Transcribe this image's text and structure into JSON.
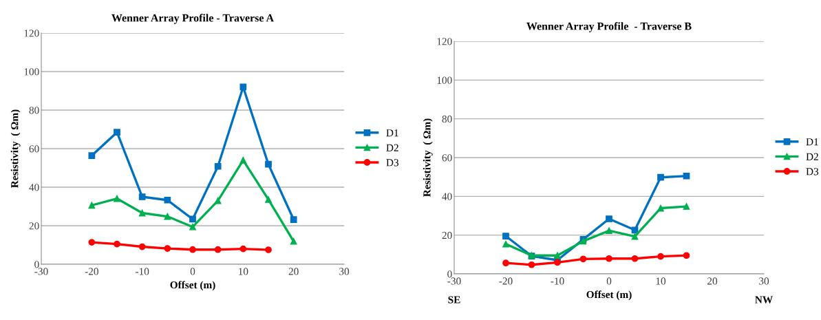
{
  "chart_data": [
    {
      "type": "line",
      "title": "Wenner Array Profile - Traverse A",
      "xlabel": "Offset (m)",
      "ylabel": "Resistivity  ( Ωm)",
      "xlim": [
        -30,
        30
      ],
      "xticks": [
        -30,
        -20,
        -10,
        0,
        10,
        20,
        30
      ],
      "ylim": [
        0,
        120
      ],
      "yticks": [
        0,
        20,
        40,
        60,
        80,
        100,
        120
      ],
      "grid": "y",
      "legend": "right",
      "series": [
        {
          "name": "D1",
          "color": "#0070c0",
          "marker": "square",
          "x": [
            -20,
            -15,
            -10,
            -5,
            0,
            5,
            10,
            15,
            20
          ],
          "values": [
            56.4,
            68.5,
            35,
            33.3,
            23.4,
            50.8,
            92,
            51.9,
            23.2
          ]
        },
        {
          "name": "D2",
          "color": "#00b050",
          "marker": "triangle",
          "x": [
            -20,
            -15,
            -10,
            -5,
            0,
            5,
            10,
            15,
            20
          ],
          "values": [
            30.6,
            34.1,
            26.6,
            24.8,
            19.4,
            33,
            54,
            33.6,
            11.9
          ]
        },
        {
          "name": "D3",
          "color": "#ff0000",
          "marker": "circle",
          "x": [
            -20,
            -15,
            -10,
            -5,
            0,
            5,
            10,
            15
          ],
          "values": [
            11.4,
            10.5,
            9.1,
            8.2,
            7.6,
            7.6,
            8,
            7.5
          ]
        }
      ]
    },
    {
      "type": "line",
      "title": "Wenner Array Profile  - Traverse B",
      "xlabel": "Offset (m)",
      "ylabel": "Resistivity  ( Ωm)",
      "xlim": [
        -30,
        30
      ],
      "xticks": [
        -30,
        -20,
        -10,
        0,
        10,
        20,
        30
      ],
      "ylim": [
        0,
        120
      ],
      "yticks": [
        0,
        20,
        40,
        60,
        80,
        100,
        120
      ],
      "grid": "y",
      "legend": "right",
      "annotations": [
        "SE",
        "NW"
      ],
      "series": [
        {
          "name": "D1",
          "color": "#0070c0",
          "marker": "square",
          "x": [
            -20,
            -15,
            -10,
            -5,
            0,
            5,
            10,
            15
          ],
          "values": [
            19.5,
            9.2,
            7.1,
            17.8,
            28.4,
            22.6,
            49.8,
            50.5
          ]
        },
        {
          "name": "D2",
          "color": "#00b050",
          "marker": "triangle",
          "x": [
            -20,
            -15,
            -10,
            -5,
            0,
            5,
            10,
            15
          ],
          "values": [
            15.4,
            9.5,
            9.5,
            16.9,
            22.3,
            19.3,
            33.9,
            34.8
          ]
        },
        {
          "name": "D3",
          "color": "#ff0000",
          "marker": "circle",
          "x": [
            -20,
            -15,
            -10,
            -5,
            0,
            5,
            10,
            15
          ],
          "values": [
            5.6,
            4.7,
            5.9,
            7.7,
            7.9,
            7.9,
            9,
            9.5
          ]
        }
      ]
    }
  ]
}
